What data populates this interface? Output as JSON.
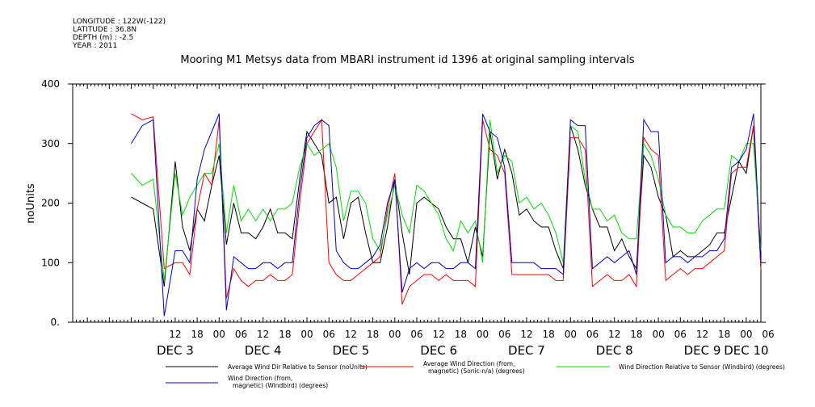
{
  "header": {
    "meta_lines": [
      "LONGITUDE : 122W(-122)",
      "LATITUDE : 36.8N",
      "DEPTH (m) : -2.5",
      "YEAR : 2011"
    ],
    "title": "Mooring M1 Metsys data from MBARI instrument id 1396 at original sampling intervals"
  },
  "chart_data": {
    "type": "line",
    "title": "Mooring M1 Metsys data from MBARI instrument id 1396 at original sampling intervals",
    "ylabel": "noUnits",
    "xlabel": "",
    "ylim": [
      0,
      400
    ],
    "yticks": [
      0,
      100,
      200,
      300,
      400
    ],
    "ytick_labels": [
      "0.",
      "100",
      "200",
      "300",
      "400"
    ],
    "xlim_hours": [
      -16,
      172
    ],
    "hour_tick_labels": [
      {
        "h": 12,
        "label": "12"
      },
      {
        "h": 18,
        "label": "18"
      },
      {
        "h": 24,
        "label": "00"
      },
      {
        "h": 30,
        "label": "06"
      },
      {
        "h": 36,
        "label": "12"
      },
      {
        "h": 42,
        "label": "18"
      },
      {
        "h": 48,
        "label": "00"
      },
      {
        "h": 54,
        "label": "06"
      },
      {
        "h": 60,
        "label": "12"
      },
      {
        "h": 66,
        "label": "18"
      },
      {
        "h": 72,
        "label": "00"
      },
      {
        "h": 78,
        "label": "06"
      },
      {
        "h": 84,
        "label": "12"
      },
      {
        "h": 90,
        "label": "18"
      },
      {
        "h": 96,
        "label": "00"
      },
      {
        "h": 102,
        "label": "06"
      },
      {
        "h": 108,
        "label": "12"
      },
      {
        "h": 114,
        "label": "18"
      },
      {
        "h": 120,
        "label": "00"
      },
      {
        "h": 126,
        "label": "06"
      },
      {
        "h": 132,
        "label": "12"
      },
      {
        "h": 138,
        "label": "18"
      },
      {
        "h": 144,
        "label": "00"
      },
      {
        "h": 150,
        "label": "06"
      },
      {
        "h": 156,
        "label": "12"
      },
      {
        "h": 162,
        "label": "18"
      },
      {
        "h": 168,
        "label": "00"
      },
      {
        "h": 174,
        "label": "06"
      }
    ],
    "day_labels": [
      {
        "h": 12,
        "label": "DEC  3"
      },
      {
        "h": 36,
        "label": "DEC  4"
      },
      {
        "h": 60,
        "label": "DEC  5"
      },
      {
        "h": 84,
        "label": "DEC  6"
      },
      {
        "h": 108,
        "label": "DEC  7"
      },
      {
        "h": 132,
        "label": "DEC  8"
      },
      {
        "h": 156,
        "label": "DEC  9"
      },
      {
        "h": 168,
        "label": "DEC 10"
      }
    ],
    "series": [
      {
        "name": "Average Wind Dir Relative to Sensor (noUnits)",
        "color": "#000000",
        "x": [
          0,
          3,
          6,
          9,
          12,
          14,
          16,
          18,
          20,
          22,
          24,
          26,
          28,
          30,
          32,
          34,
          36,
          38,
          40,
          42,
          44,
          46,
          48,
          50,
          52,
          54,
          56,
          58,
          60,
          62,
          64,
          66,
          68,
          70,
          72,
          74,
          76,
          78,
          80,
          82,
          84,
          86,
          88,
          90,
          92,
          94,
          96,
          98,
          100,
          102,
          104,
          106,
          108,
          110,
          112,
          114,
          116,
          118,
          120,
          122,
          124,
          126,
          128,
          130,
          132,
          134,
          136,
          138,
          140,
          142,
          144,
          146,
          148,
          150,
          152,
          154,
          156,
          158,
          160,
          162,
          164,
          166,
          168,
          170,
          172
        ],
        "y": [
          210,
          200,
          190,
          60,
          270,
          160,
          120,
          190,
          170,
          230,
          280,
          130,
          200,
          150,
          150,
          140,
          160,
          190,
          150,
          150,
          140,
          240,
          320,
          300,
          280,
          200,
          210,
          140,
          200,
          210,
          150,
          100,
          100,
          160,
          240,
          150,
          80,
          200,
          210,
          200,
          190,
          160,
          140,
          140,
          100,
          160,
          110,
          320,
          240,
          290,
          250,
          180,
          190,
          170,
          160,
          160,
          120,
          90,
          330,
          290,
          230,
          190,
          160,
          160,
          120,
          140,
          110,
          90,
          280,
          260,
          210,
          180,
          110,
          120,
          110,
          110,
          120,
          130,
          150,
          150,
          210,
          270,
          250,
          330,
          90
        ]
      },
      {
        "name": "Average Wind Direction (from, magnetic) (Sonic-n/a) (degrees)",
        "color": "#ff0000",
        "x": [
          0,
          3,
          6,
          9,
          12,
          14,
          16,
          18,
          20,
          22,
          24,
          26,
          28,
          30,
          32,
          34,
          36,
          38,
          40,
          42,
          44,
          46,
          48,
          50,
          52,
          54,
          56,
          58,
          60,
          62,
          64,
          66,
          68,
          70,
          72,
          74,
          76,
          78,
          80,
          82,
          84,
          86,
          88,
          90,
          92,
          94,
          96,
          98,
          100,
          102,
          104,
          106,
          108,
          110,
          112,
          114,
          116,
          118,
          120,
          122,
          124,
          126,
          128,
          130,
          132,
          134,
          136,
          138,
          140,
          142,
          144,
          146,
          148,
          150,
          152,
          154,
          156,
          158,
          160,
          162,
          164,
          166,
          168,
          170,
          172
        ],
        "y": [
          350,
          340,
          345,
          90,
          100,
          100,
          80,
          190,
          250,
          230,
          340,
          40,
          90,
          70,
          60,
          70,
          70,
          80,
          70,
          70,
          80,
          200,
          300,
          320,
          340,
          100,
          80,
          70,
          70,
          80,
          90,
          100,
          110,
          190,
          250,
          30,
          60,
          70,
          80,
          80,
          70,
          80,
          70,
          70,
          70,
          60,
          340,
          290,
          280,
          250,
          80,
          80,
          80,
          80,
          80,
          80,
          70,
          70,
          310,
          310,
          290,
          60,
          70,
          80,
          70,
          70,
          80,
          60,
          310,
          290,
          280,
          70,
          80,
          90,
          80,
          90,
          90,
          100,
          110,
          120,
          250,
          260,
          260,
          330,
          90
        ]
      },
      {
        "name": "Wind Direction Relative to Sensor (Windbird) (degrees)",
        "color": "#00dd00",
        "x": [
          0,
          3,
          6,
          9,
          12,
          14,
          16,
          18,
          20,
          22,
          24,
          26,
          28,
          30,
          32,
          34,
          36,
          38,
          40,
          42,
          44,
          46,
          48,
          50,
          52,
          54,
          56,
          58,
          60,
          62,
          64,
          66,
          68,
          70,
          72,
          74,
          76,
          78,
          80,
          82,
          84,
          86,
          88,
          90,
          92,
          94,
          96,
          98,
          100,
          102,
          104,
          106,
          108,
          110,
          112,
          114,
          116,
          118,
          120,
          122,
          124,
          126,
          128,
          130,
          132,
          134,
          136,
          138,
          140,
          142,
          144,
          146,
          148,
          150,
          152,
          154,
          156,
          158,
          160,
          162,
          164,
          166,
          168,
          170,
          172
        ],
        "y": [
          250,
          230,
          240,
          70,
          250,
          180,
          210,
          230,
          250,
          250,
          300,
          150,
          230,
          170,
          190,
          170,
          190,
          170,
          190,
          190,
          200,
          260,
          300,
          280,
          290,
          300,
          260,
          170,
          220,
          220,
          200,
          140,
          120,
          180,
          230,
          180,
          150,
          230,
          220,
          200,
          180,
          140,
          120,
          170,
          150,
          170,
          100,
          340,
          250,
          280,
          270,
          200,
          210,
          190,
          200,
          180,
          150,
          100,
          330,
          320,
          240,
          190,
          190,
          170,
          180,
          150,
          140,
          140,
          300,
          280,
          240,
          180,
          160,
          160,
          150,
          150,
          170,
          180,
          190,
          190,
          280,
          270,
          300,
          300,
          120
        ]
      },
      {
        "name": "Wind Direction (from, magnetic) (Windbird) (degrees)",
        "color": "#0000cc",
        "x": [
          0,
          3,
          6,
          9,
          12,
          14,
          16,
          18,
          20,
          22,
          24,
          26,
          28,
          30,
          32,
          34,
          36,
          38,
          40,
          42,
          44,
          46,
          48,
          50,
          52,
          54,
          56,
          58,
          60,
          62,
          64,
          66,
          68,
          70,
          72,
          74,
          76,
          78,
          80,
          82,
          84,
          86,
          88,
          90,
          92,
          94,
          96,
          98,
          100,
          102,
          104,
          106,
          108,
          110,
          112,
          114,
          116,
          118,
          120,
          122,
          124,
          126,
          128,
          130,
          132,
          134,
          136,
          138,
          140,
          142,
          144,
          146,
          148,
          150,
          152,
          154,
          156,
          158,
          160,
          162,
          164,
          166,
          168,
          170,
          172
        ],
        "y": [
          300,
          330,
          340,
          10,
          120,
          120,
          100,
          240,
          290,
          320,
          350,
          20,
          110,
          100,
          90,
          90,
          100,
          100,
          90,
          100,
          100,
          220,
          310,
          330,
          340,
          330,
          120,
          100,
          90,
          90,
          100,
          110,
          130,
          200,
          240,
          50,
          90,
          100,
          90,
          100,
          100,
          90,
          90,
          100,
          100,
          90,
          350,
          320,
          310,
          260,
          100,
          100,
          100,
          100,
          90,
          90,
          90,
          80,
          340,
          330,
          330,
          90,
          100,
          110,
          100,
          110,
          120,
          80,
          340,
          320,
          320,
          100,
          110,
          110,
          100,
          110,
          110,
          120,
          120,
          140,
          260,
          270,
          290,
          350,
          100
        ]
      }
    ],
    "legend_position": "bottom",
    "grid": false
  },
  "legend": {
    "items": [
      {
        "line1": "Average Wind Dir Relative to Sensor (noUnits)",
        "line2": ""
      },
      {
        "line1": "Average Wind Direction (from,",
        "line2": "magnetic) (Sonic-n/a) (degrees)"
      },
      {
        "line1": "Wind Direction Relative to Sensor (Windbird) (degrees)",
        "line2": ""
      },
      {
        "line1": "Wind Direction (from,",
        "line2": "magnetic) (Windbird) (degrees)"
      }
    ]
  }
}
